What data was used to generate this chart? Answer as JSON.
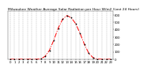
{
  "title": "Milwaukee Weather Average Solar Radiation per Hour W/m2 (Last 24 Hours)",
  "hours": [
    0,
    1,
    2,
    3,
    4,
    5,
    6,
    7,
    8,
    9,
    10,
    11,
    12,
    13,
    14,
    15,
    16,
    17,
    18,
    19,
    20,
    21,
    22,
    23
  ],
  "values": [
    0,
    0,
    0,
    0,
    0,
    0,
    0,
    5,
    40,
    120,
    260,
    420,
    540,
    590,
    560,
    480,
    350,
    200,
    80,
    20,
    2,
    0,
    0,
    0
  ],
  "line_color": "#ff0000",
  "marker_color": "#000000",
  "grid_color": "#888888",
  "bg_color": "#ffffff",
  "ylim": [
    0,
    650
  ],
  "yticks": [
    0,
    100,
    200,
    300,
    400,
    500,
    600
  ],
  "title_fontsize": 3.2,
  "tick_fontsize": 2.8,
  "xlim": [
    -0.5,
    23.5
  ]
}
